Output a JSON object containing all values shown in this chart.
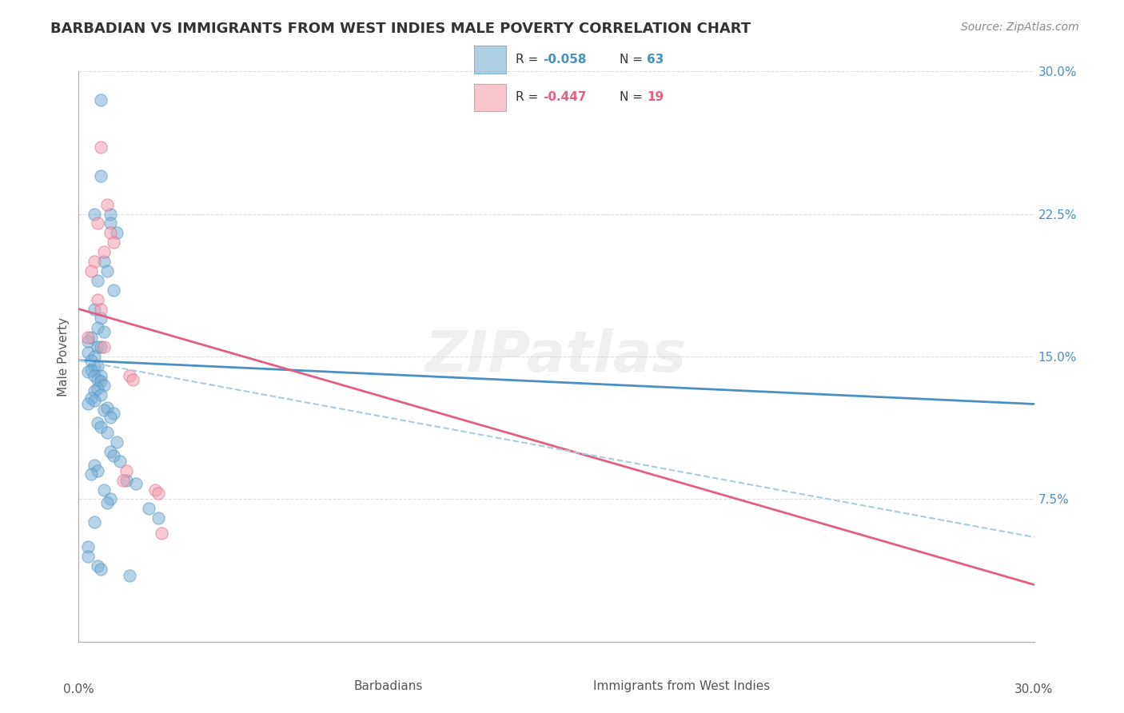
{
  "title": "BARBADIAN VS IMMIGRANTS FROM WEST INDIES MALE POVERTY CORRELATION CHART",
  "source": "Source: ZipAtlas.com",
  "ylabel": "Male Poverty",
  "legend_blue_r": "R = -0.058",
  "legend_blue_n": "N = 63",
  "legend_pink_r": "R = -0.447",
  "legend_pink_n": "N = 19",
  "legend_label_blue": "Barbadians",
  "legend_label_pink": "Immigrants from West Indies",
  "watermark": "ZIPatlas",
  "xlim": [
    0.0,
    0.3
  ],
  "ylim": [
    0.0,
    0.3
  ],
  "ytick_labels": [
    "",
    "7.5%",
    "15.0%",
    "22.5%",
    "30.0%"
  ],
  "ytick_vals": [
    0.0,
    0.075,
    0.15,
    0.225,
    0.3
  ],
  "blue_scatter_x": [
    0.007,
    0.007,
    0.005,
    0.01,
    0.01,
    0.012,
    0.008,
    0.009,
    0.006,
    0.011,
    0.005,
    0.007,
    0.006,
    0.008,
    0.004,
    0.003,
    0.006,
    0.007,
    0.003,
    0.005,
    0.004,
    0.005,
    0.006,
    0.004,
    0.003,
    0.007,
    0.005,
    0.006,
    0.007,
    0.008,
    0.006,
    0.005,
    0.007,
    0.004,
    0.005,
    0.003,
    0.009,
    0.008,
    0.011,
    0.01,
    0.006,
    0.007,
    0.009,
    0.012,
    0.01,
    0.011,
    0.013,
    0.005,
    0.006,
    0.004,
    0.015,
    0.018,
    0.008,
    0.01,
    0.009,
    0.022,
    0.025,
    0.005,
    0.003,
    0.003,
    0.006,
    0.007,
    0.016
  ],
  "blue_scatter_y": [
    0.285,
    0.245,
    0.225,
    0.225,
    0.22,
    0.215,
    0.2,
    0.195,
    0.19,
    0.185,
    0.175,
    0.17,
    0.165,
    0.163,
    0.16,
    0.158,
    0.155,
    0.155,
    0.152,
    0.15,
    0.148,
    0.145,
    0.145,
    0.143,
    0.142,
    0.14,
    0.14,
    0.138,
    0.137,
    0.135,
    0.133,
    0.132,
    0.13,
    0.128,
    0.127,
    0.125,
    0.123,
    0.122,
    0.12,
    0.118,
    0.115,
    0.113,
    0.11,
    0.105,
    0.1,
    0.098,
    0.095,
    0.093,
    0.09,
    0.088,
    0.085,
    0.083,
    0.08,
    0.075,
    0.073,
    0.07,
    0.065,
    0.063,
    0.05,
    0.045,
    0.04,
    0.038,
    0.035
  ],
  "pink_scatter_x": [
    0.007,
    0.009,
    0.006,
    0.01,
    0.011,
    0.008,
    0.005,
    0.004,
    0.006,
    0.007,
    0.003,
    0.008,
    0.016,
    0.017,
    0.024,
    0.025,
    0.026,
    0.015,
    0.014
  ],
  "pink_scatter_y": [
    0.26,
    0.23,
    0.22,
    0.215,
    0.21,
    0.205,
    0.2,
    0.195,
    0.18,
    0.175,
    0.16,
    0.155,
    0.14,
    0.138,
    0.08,
    0.078,
    0.057,
    0.09,
    0.085
  ],
  "blue_line_x": [
    0.0,
    0.3
  ],
  "blue_line_y_start": 0.148,
  "blue_line_y_end": 0.125,
  "pink_line_y_start": 0.175,
  "pink_line_y_end": 0.03,
  "dash_line_y_start": 0.148,
  "dash_line_y_end": 0.055,
  "blue_color": "#7bafd4",
  "pink_color": "#f4a0b0",
  "blue_line_color": "#4a90c4",
  "pink_line_color": "#e06080",
  "dash_line_color": "#aacce0",
  "bg_color": "#ffffff",
  "grid_color": "#dddddd",
  "title_color": "#333333",
  "axis_label_color": "#4a90c4"
}
